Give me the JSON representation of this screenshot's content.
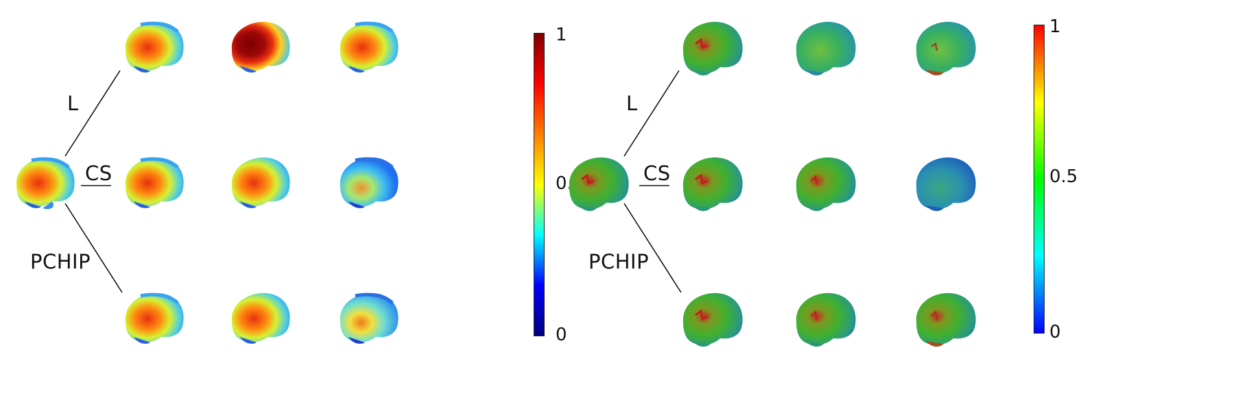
{
  "left_panel": {
    "branch_labels": {
      "top": "L",
      "middle": "CS",
      "bottom": "PCHIP"
    },
    "colorbar": {
      "colormap": "jet",
      "stops": [
        "#00007f",
        "#0000ff",
        "#00ffff",
        "#ffff00",
        "#ff7f00",
        "#ff0000",
        "#7f0000"
      ],
      "ticks": [
        "1",
        "0.5",
        "0"
      ]
    }
  },
  "right_panel": {
    "branch_labels": {
      "top": "L",
      "middle": "CS",
      "bottom": "PCHIP"
    },
    "colorbar": {
      "colormap": "rainbow",
      "stops": [
        "#0000ff",
        "#00ffff",
        "#00ff00",
        "#ffff00",
        "#ff0000"
      ],
      "ticks": [
        "1",
        "0.5",
        "0"
      ]
    }
  }
}
